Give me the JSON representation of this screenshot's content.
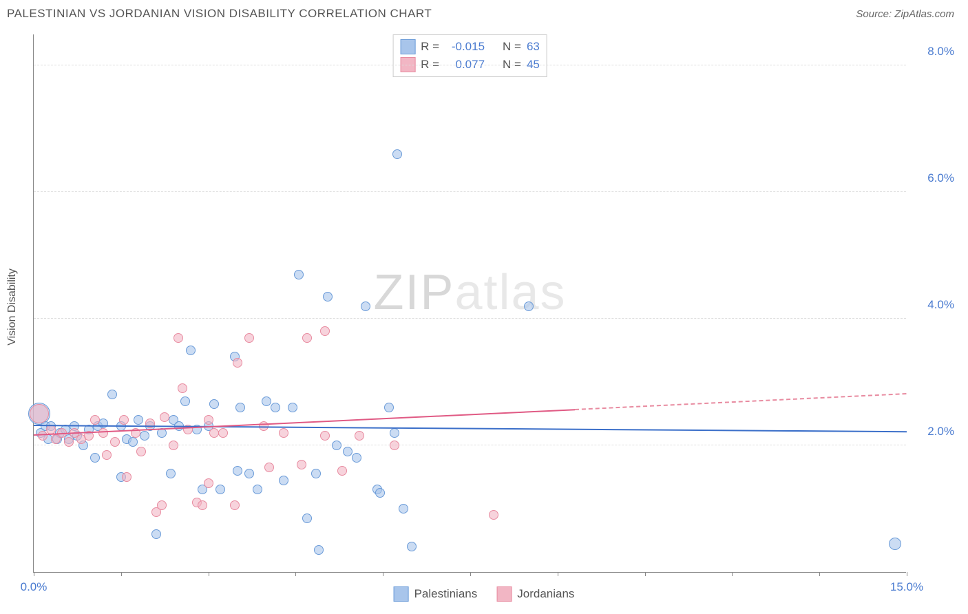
{
  "header": {
    "title": "PALESTINIAN VS JORDANIAN VISION DISABILITY CORRELATION CHART",
    "source_prefix": "Source: ",
    "source": "ZipAtlas.com"
  },
  "chart": {
    "type": "scatter",
    "ylabel": "Vision Disability",
    "watermark_a": "ZIP",
    "watermark_b": "atlas",
    "background_color": "#ffffff",
    "grid_color": "#dddddd",
    "axis_color": "#888888",
    "xlim": [
      0,
      15
    ],
    "ylim": [
      0,
      8.5
    ],
    "xticks": [
      0,
      1.5,
      3,
      4.5,
      6,
      7.5,
      9,
      10.5,
      12,
      13.5,
      15
    ],
    "xtick_labels": {
      "0": "0.0%",
      "15": "15.0%"
    },
    "yticks": [
      2,
      4,
      6,
      8
    ],
    "ytick_labels": {
      "2": "2.0%",
      "4": "4.0%",
      "6": "6.0%",
      "8": "8.0%"
    },
    "label_fontsize": 17,
    "label_color": "#4a7bd0",
    "series": [
      {
        "name": "Palestinians",
        "color_fill": "#a8c5eb99",
        "color_stroke": "#6a9bd8",
        "trend_color": "#3b6fc9",
        "R": "-0.015",
        "N": "63",
        "trend": {
          "x1": 0,
          "y1": 2.3,
          "x2": 15,
          "y2": 2.2,
          "dash_from": 15
        },
        "points": [
          {
            "x": 0.1,
            "y": 2.5,
            "r": 16
          },
          {
            "x": 0.12,
            "y": 2.2,
            "r": 7
          },
          {
            "x": 0.2,
            "y": 2.3,
            "r": 7
          },
          {
            "x": 0.25,
            "y": 2.1,
            "r": 7
          },
          {
            "x": 0.3,
            "y": 2.3,
            "r": 7
          },
          {
            "x": 0.4,
            "y": 2.1,
            "r": 7
          },
          {
            "x": 0.45,
            "y": 2.2,
            "r": 7
          },
          {
            "x": 0.55,
            "y": 2.25,
            "r": 7
          },
          {
            "x": 0.6,
            "y": 2.1,
            "r": 7
          },
          {
            "x": 0.7,
            "y": 2.3,
            "r": 7
          },
          {
            "x": 0.75,
            "y": 2.15,
            "r": 7
          },
          {
            "x": 0.85,
            "y": 2.0,
            "r": 7
          },
          {
            "x": 0.95,
            "y": 2.25,
            "r": 7
          },
          {
            "x": 1.05,
            "y": 1.8,
            "r": 7
          },
          {
            "x": 1.1,
            "y": 2.3,
            "r": 7
          },
          {
            "x": 1.2,
            "y": 2.35,
            "r": 7
          },
          {
            "x": 1.35,
            "y": 2.8,
            "r": 7
          },
          {
            "x": 1.5,
            "y": 2.3,
            "r": 7
          },
          {
            "x": 1.5,
            "y": 1.5,
            "r": 7
          },
          {
            "x": 1.6,
            "y": 2.1,
            "r": 7
          },
          {
            "x": 1.8,
            "y": 2.4,
            "r": 7
          },
          {
            "x": 1.9,
            "y": 2.15,
            "r": 7
          },
          {
            "x": 2.0,
            "y": 2.3,
            "r": 7
          },
          {
            "x": 2.1,
            "y": 0.6,
            "r": 7
          },
          {
            "x": 2.2,
            "y": 2.2,
            "r": 7
          },
          {
            "x": 2.35,
            "y": 1.55,
            "r": 7
          },
          {
            "x": 2.4,
            "y": 2.4,
            "r": 7
          },
          {
            "x": 2.5,
            "y": 2.3,
            "r": 7
          },
          {
            "x": 2.6,
            "y": 2.7,
            "r": 7
          },
          {
            "x": 2.7,
            "y": 3.5,
            "r": 7
          },
          {
            "x": 2.8,
            "y": 2.25,
            "r": 7
          },
          {
            "x": 2.9,
            "y": 1.3,
            "r": 7
          },
          {
            "x": 3.0,
            "y": 2.3,
            "r": 7
          },
          {
            "x": 3.1,
            "y": 2.65,
            "r": 7
          },
          {
            "x": 3.2,
            "y": 1.3,
            "r": 7
          },
          {
            "x": 3.45,
            "y": 3.4,
            "r": 7
          },
          {
            "x": 3.5,
            "y": 1.6,
            "r": 7
          },
          {
            "x": 3.55,
            "y": 2.6,
            "r": 7
          },
          {
            "x": 3.7,
            "y": 1.55,
            "r": 7
          },
          {
            "x": 3.85,
            "y": 1.3,
            "r": 7
          },
          {
            "x": 4.0,
            "y": 2.7,
            "r": 7
          },
          {
            "x": 4.15,
            "y": 2.6,
            "r": 7
          },
          {
            "x": 4.3,
            "y": 1.45,
            "r": 7
          },
          {
            "x": 4.45,
            "y": 2.6,
            "r": 7
          },
          {
            "x": 4.55,
            "y": 4.7,
            "r": 7
          },
          {
            "x": 4.7,
            "y": 0.85,
            "r": 7
          },
          {
            "x": 4.85,
            "y": 1.55,
            "r": 7
          },
          {
            "x": 4.9,
            "y": 0.35,
            "r": 7
          },
          {
            "x": 5.05,
            "y": 4.35,
            "r": 7
          },
          {
            "x": 5.2,
            "y": 2.0,
            "r": 7
          },
          {
            "x": 5.4,
            "y": 1.9,
            "r": 7
          },
          {
            "x": 5.55,
            "y": 1.8,
            "r": 7
          },
          {
            "x": 5.7,
            "y": 4.2,
            "r": 7
          },
          {
            "x": 5.9,
            "y": 1.3,
            "r": 7
          },
          {
            "x": 5.95,
            "y": 1.25,
            "r": 7
          },
          {
            "x": 6.1,
            "y": 2.6,
            "r": 7
          },
          {
            "x": 6.2,
            "y": 2.2,
            "r": 7
          },
          {
            "x": 6.25,
            "y": 6.6,
            "r": 7
          },
          {
            "x": 6.5,
            "y": 0.4,
            "r": 7
          },
          {
            "x": 6.35,
            "y": 1.0,
            "r": 7
          },
          {
            "x": 8.5,
            "y": 4.2,
            "r": 7
          },
          {
            "x": 14.8,
            "y": 0.45,
            "r": 9
          },
          {
            "x": 1.7,
            "y": 2.05,
            "r": 7
          }
        ]
      },
      {
        "name": "Jordanians",
        "color_fill": "#f2b6c499",
        "color_stroke": "#e88ba0",
        "trend_color": "#e05a84",
        "R": "0.077",
        "N": "45",
        "trend": {
          "x1": 0,
          "y1": 2.15,
          "x2": 9.3,
          "y2": 2.55,
          "dash_from": 9.3,
          "dash_x2": 15,
          "dash_y2": 2.8
        },
        "points": [
          {
            "x": 0.1,
            "y": 2.5,
            "r": 14
          },
          {
            "x": 0.15,
            "y": 2.15,
            "r": 7
          },
          {
            "x": 0.3,
            "y": 2.25,
            "r": 7
          },
          {
            "x": 0.38,
            "y": 2.1,
            "r": 7
          },
          {
            "x": 0.48,
            "y": 2.2,
            "r": 7
          },
          {
            "x": 0.6,
            "y": 2.05,
            "r": 7
          },
          {
            "x": 0.7,
            "y": 2.2,
            "r": 7
          },
          {
            "x": 0.82,
            "y": 2.1,
            "r": 7
          },
          {
            "x": 0.95,
            "y": 2.15,
            "r": 7
          },
          {
            "x": 1.05,
            "y": 2.4,
            "r": 7
          },
          {
            "x": 1.2,
            "y": 2.2,
            "r": 7
          },
          {
            "x": 1.25,
            "y": 1.85,
            "r": 7
          },
          {
            "x": 1.4,
            "y": 2.05,
            "r": 7
          },
          {
            "x": 1.55,
            "y": 2.4,
            "r": 7
          },
          {
            "x": 1.6,
            "y": 1.5,
            "r": 7
          },
          {
            "x": 1.75,
            "y": 2.2,
            "r": 7
          },
          {
            "x": 1.85,
            "y": 1.9,
            "r": 7
          },
          {
            "x": 2.0,
            "y": 2.35,
            "r": 7
          },
          {
            "x": 2.1,
            "y": 0.95,
            "r": 7
          },
          {
            "x": 2.2,
            "y": 1.05,
            "r": 7
          },
          {
            "x": 2.25,
            "y": 2.45,
            "r": 7
          },
          {
            "x": 2.4,
            "y": 2.0,
            "r": 7
          },
          {
            "x": 2.48,
            "y": 3.7,
            "r": 7
          },
          {
            "x": 2.55,
            "y": 2.9,
            "r": 7
          },
          {
            "x": 2.8,
            "y": 1.1,
            "r": 7
          },
          {
            "x": 2.9,
            "y": 1.05,
            "r": 7
          },
          {
            "x": 3.0,
            "y": 2.4,
            "r": 7
          },
          {
            "x": 3.1,
            "y": 2.2,
            "r": 7
          },
          {
            "x": 3.0,
            "y": 1.4,
            "r": 7
          },
          {
            "x": 3.25,
            "y": 2.2,
            "r": 7
          },
          {
            "x": 3.45,
            "y": 1.05,
            "r": 7
          },
          {
            "x": 3.5,
            "y": 3.3,
            "r": 7
          },
          {
            "x": 3.7,
            "y": 3.7,
            "r": 7
          },
          {
            "x": 3.95,
            "y": 2.3,
            "r": 7
          },
          {
            "x": 4.05,
            "y": 1.65,
            "r": 7
          },
          {
            "x": 4.3,
            "y": 2.2,
            "r": 7
          },
          {
            "x": 4.6,
            "y": 1.7,
            "r": 7
          },
          {
            "x": 4.7,
            "y": 3.7,
            "r": 7
          },
          {
            "x": 5.0,
            "y": 3.8,
            "r": 7
          },
          {
            "x": 5.0,
            "y": 2.15,
            "r": 7
          },
          {
            "x": 5.3,
            "y": 1.6,
            "r": 7
          },
          {
            "x": 5.6,
            "y": 2.15,
            "r": 7
          },
          {
            "x": 6.2,
            "y": 2.0,
            "r": 7
          },
          {
            "x": 7.9,
            "y": 0.9,
            "r": 7
          },
          {
            "x": 2.65,
            "y": 2.25,
            "r": 7
          }
        ]
      }
    ]
  },
  "stats_box": {
    "rows": [
      {
        "swatch_fill": "#a8c5eb",
        "swatch_border": "#6a9bd8",
        "r_label": "R =",
        "r_val": "-0.015",
        "n_label": "N =",
        "n_val": "63"
      },
      {
        "swatch_fill": "#f2b6c4",
        "swatch_border": "#e88ba0",
        "r_label": "R =",
        "r_val": "0.077",
        "n_label": "N =",
        "n_val": "45"
      }
    ]
  },
  "legend": {
    "items": [
      {
        "swatch_fill": "#a8c5eb",
        "swatch_border": "#6a9bd8",
        "label": "Palestinians"
      },
      {
        "swatch_fill": "#f2b6c4",
        "swatch_border": "#e88ba0",
        "label": "Jordanians"
      }
    ]
  }
}
